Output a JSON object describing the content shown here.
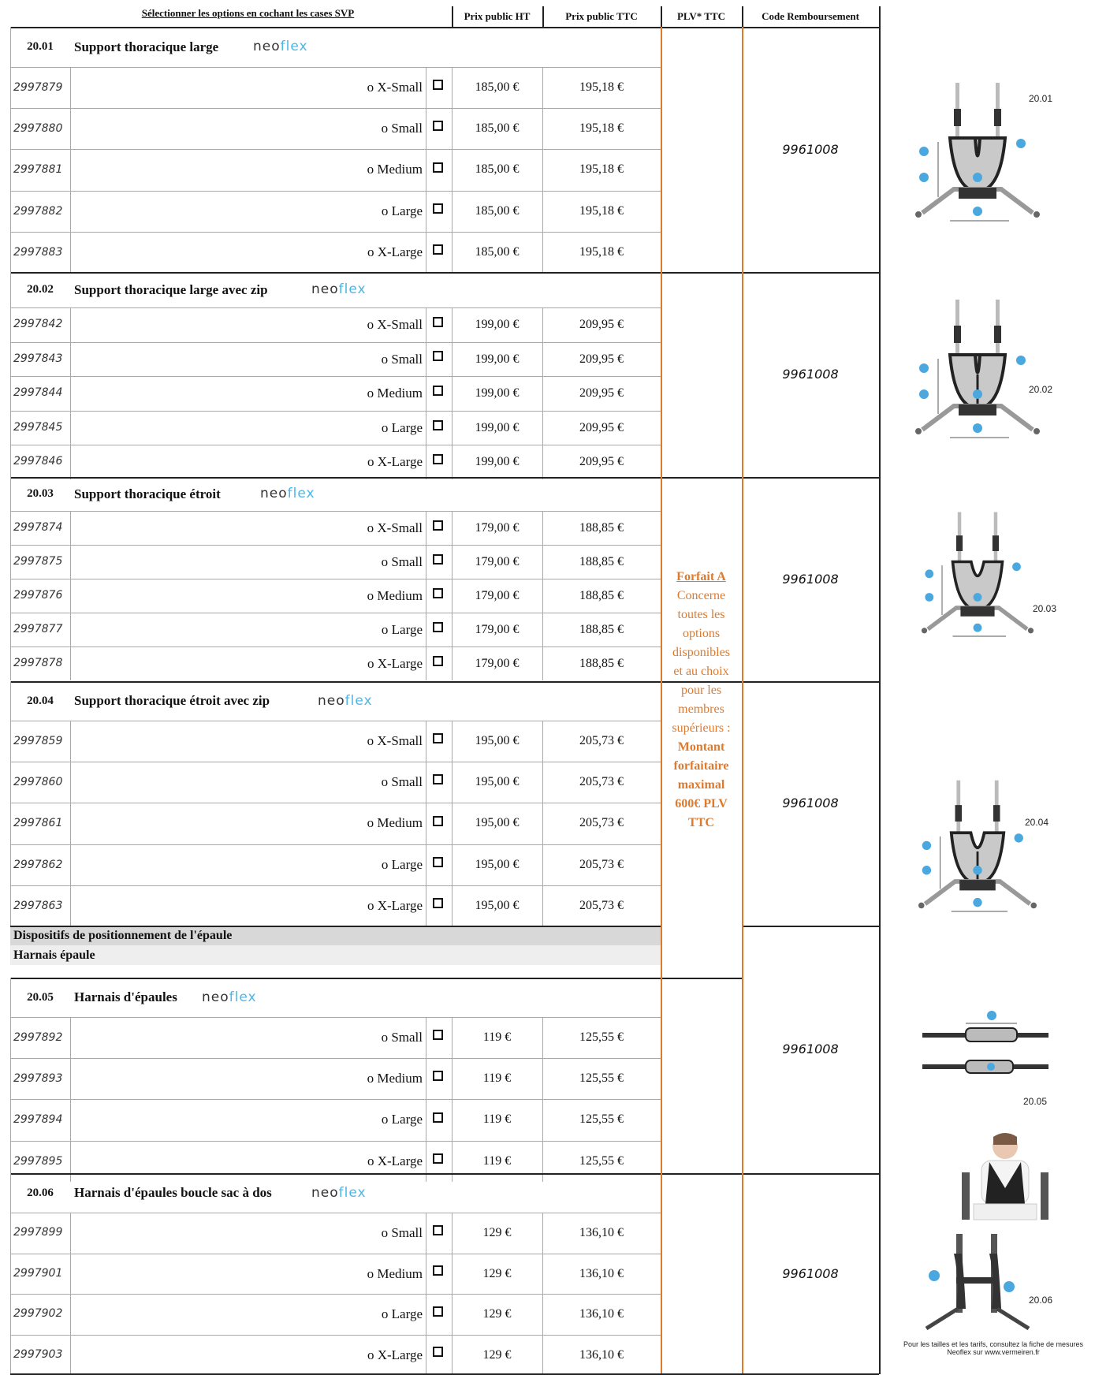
{
  "header": {
    "select_hint": "Sélectionner les options en cochant les cases SVP",
    "col_ht": "Prix public HT",
    "col_ttc": "Prix public TTC",
    "col_plv": "PLV* TTC",
    "col_code": "Code Remboursement"
  },
  "logo": {
    "part1": "neo",
    "part2": "flex"
  },
  "forfait": {
    "title": "Forfait A",
    "lines": [
      "Concerne",
      "toutes les",
      "options",
      "disponibles",
      "et au choix",
      "pour les",
      "membres",
      "supérieurs :"
    ],
    "bold_lines": [
      "Montant",
      "forfaitaire",
      "maximal",
      "600€ PLV",
      "TTC"
    ]
  },
  "category": {
    "group": "Dispositifs de positionnement de l'épaule",
    "sub": "Harnais épaule"
  },
  "sections": [
    {
      "num": "20.01",
      "title": "Support thoracique  large",
      "remb": "9961008",
      "image_label": "20.01",
      "rows": [
        {
          "code": "2997879",
          "size": "o X-Small",
          "ht": "185,00 €",
          "ttc": "195,18 €"
        },
        {
          "code": "2997880",
          "size": "o Small",
          "ht": "185,00 €",
          "ttc": "195,18 €"
        },
        {
          "code": "2997881",
          "size": "o Medium",
          "ht": "185,00 €",
          "ttc": "195,18 €"
        },
        {
          "code": "2997882",
          "size": "o Large",
          "ht": "185,00 €",
          "ttc": "195,18 €"
        },
        {
          "code": "2997883",
          "size": "o X-Large",
          "ht": "185,00 €",
          "ttc": "195,18 €"
        }
      ]
    },
    {
      "num": "20.02",
      "title": "Support thoracique  large avec zip",
      "remb": "9961008",
      "image_label": "20.02",
      "rows": [
        {
          "code": "2997842",
          "size": "o X-Small",
          "ht": "199,00 €",
          "ttc": "209,95 €"
        },
        {
          "code": "2997843",
          "size": "o Small",
          "ht": "199,00 €",
          "ttc": "209,95 €"
        },
        {
          "code": "2997844",
          "size": "o Medium",
          "ht": "199,00 €",
          "ttc": "209,95 €"
        },
        {
          "code": "2997845",
          "size": "o Large",
          "ht": "199,00 €",
          "ttc": "209,95 €"
        },
        {
          "code": "2997846",
          "size": "o X-Large",
          "ht": "199,00 €",
          "ttc": "209,95 €"
        }
      ]
    },
    {
      "num": "20.03",
      "title": "Support thoracique  étroit",
      "remb": "9961008",
      "image_label": "20.03",
      "rows": [
        {
          "code": "2997874",
          "size": "o X-Small",
          "ht": "179,00 €",
          "ttc": "188,85 €"
        },
        {
          "code": "2997875",
          "size": "o Small",
          "ht": "179,00 €",
          "ttc": "188,85 €"
        },
        {
          "code": "2997876",
          "size": "o Medium",
          "ht": "179,00 €",
          "ttc": "188,85 €"
        },
        {
          "code": "2997877",
          "size": "o Large",
          "ht": "179,00 €",
          "ttc": "188,85 €"
        },
        {
          "code": "2997878",
          "size": "o X-Large",
          "ht": "179,00 €",
          "ttc": "188,85 €"
        }
      ]
    },
    {
      "num": "20.04",
      "title": "Support thoracique  étroit avec zip",
      "remb": "9961008",
      "image_label": "20.04",
      "rows": [
        {
          "code": "2997859",
          "size": "o X-Small",
          "ht": "195,00 €",
          "ttc": "205,73 €"
        },
        {
          "code": "2997860",
          "size": "o Small",
          "ht": "195,00 €",
          "ttc": "205,73 €"
        },
        {
          "code": "2997861",
          "size": "o Medium",
          "ht": "195,00 €",
          "ttc": "205,73 €"
        },
        {
          "code": "2997862",
          "size": "o Large",
          "ht": "195,00 €",
          "ttc": "205,73 €"
        },
        {
          "code": "2997863",
          "size": "o X-Large",
          "ht": "195,00 €",
          "ttc": "205,73 €"
        }
      ]
    },
    {
      "num": "20.05",
      "title": "Harnais d'épaules",
      "remb": "9961008",
      "image_label": "20.05",
      "rows": [
        {
          "code": "2997892",
          "size": "o Small",
          "ht": "119 €",
          "ttc": "125,55 €"
        },
        {
          "code": "2997893",
          "size": "o Medium",
          "ht": "119 €",
          "ttc": "125,55 €"
        },
        {
          "code": "2997894",
          "size": "o Large",
          "ht": "119 €",
          "ttc": "125,55 €"
        },
        {
          "code": "2997895",
          "size": "o X-Large",
          "ht": "119 €",
          "ttc": "125,55 €"
        }
      ]
    },
    {
      "num": "20.06",
      "title": "Harnais d'épaules boucle sac à dos",
      "remb": "9961008",
      "image_label": "20.06",
      "rows": [
        {
          "code": "2997899",
          "size": "o Small",
          "ht": "129 €",
          "ttc": "136,10 €"
        },
        {
          "code": "2997901",
          "size": "o Medium",
          "ht": "129 €",
          "ttc": "136,10 €"
        },
        {
          "code": "2997902",
          "size": "o Large",
          "ht": "129 €",
          "ttc": "136,10 €"
        },
        {
          "code": "2997903",
          "size": "o X-Large",
          "ht": "129 €",
          "ttc": "136,10 €"
        }
      ]
    }
  ],
  "footnote": "Pour les tailles et les tarifs, consultez la fiche de mesures Neoflex sur  www.vermeiren.fr"
}
